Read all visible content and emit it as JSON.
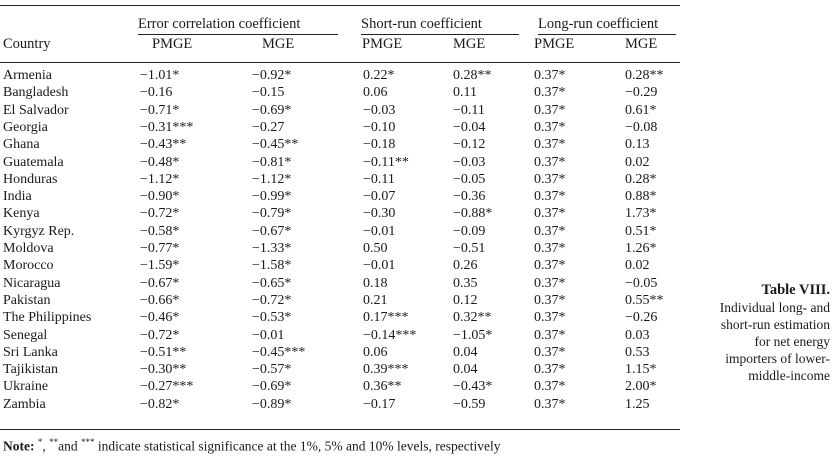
{
  "header": {
    "country": "Country",
    "groups": [
      "Error correlation coefficient",
      "Short-run coefficient",
      "Long-run coefficient"
    ],
    "subheaders": [
      "PMGE",
      "MGE",
      "PMGE",
      "MGE",
      "PMGE",
      "MGE"
    ]
  },
  "rows": [
    {
      "country": "Armenia",
      "values": [
        "−1.01*",
        "−0.92*",
        "0.22*",
        "0.28**",
        "0.37*",
        "0.28**"
      ]
    },
    {
      "country": "Bangladesh",
      "values": [
        "−0.16",
        "−0.15",
        "0.06",
        "0.11",
        "0.37*",
        "−0.29"
      ]
    },
    {
      "country": "El Salvador",
      "values": [
        "−0.71*",
        "−0.69*",
        "−0.03",
        "−0.11",
        "0.37*",
        "0.61*"
      ]
    },
    {
      "country": "Georgia",
      "values": [
        "−0.31***",
        "−0.27",
        "−0.10",
        "−0.04",
        "0.37*",
        "−0.08"
      ]
    },
    {
      "country": "Ghana",
      "values": [
        "−0.43**",
        "−0.45**",
        "−0.18",
        "−0.12",
        "0.37*",
        "0.13"
      ]
    },
    {
      "country": "Guatemala",
      "values": [
        "−0.48*",
        "−0.81*",
        "−0.11**",
        "−0.03",
        "0.37*",
        "0.02"
      ]
    },
    {
      "country": "Honduras",
      "values": [
        "−1.12*",
        "−1.12*",
        "−0.11",
        "−0.05",
        "0.37*",
        "0.28*"
      ]
    },
    {
      "country": "India",
      "values": [
        "−0.90*",
        "−0.99*",
        "−0.07",
        "−0.36",
        "0.37*",
        "0.88*"
      ]
    },
    {
      "country": "Kenya",
      "values": [
        "−0.72*",
        "−0.79*",
        "−0.30",
        "−0.88*",
        "0.37*",
        "1.73*"
      ]
    },
    {
      "country": "Kyrgyz Rep.",
      "values": [
        "−0.58*",
        "−0.67*",
        "−0.01",
        "−0.09",
        "0.37*",
        "0.51*"
      ]
    },
    {
      "country": "Moldova",
      "values": [
        "−0.77*",
        "−1.33*",
        "0.50",
        "−0.51",
        "0.37*",
        "1.26*"
      ]
    },
    {
      "country": "Morocco",
      "values": [
        "−1.59*",
        "−1.58*",
        "−0.01",
        "0.26",
        "0.37*",
        "0.02"
      ]
    },
    {
      "country": "Nicaragua",
      "values": [
        "−0.67*",
        "−0.65*",
        "0.18",
        "0.35",
        "0.37*",
        "−0.05"
      ]
    },
    {
      "country": "Pakistan",
      "values": [
        "−0.66*",
        "−0.72*",
        "0.21",
        "0.12",
        "0.37*",
        "0.55**"
      ]
    },
    {
      "country": "The Philippines",
      "values": [
        "−0.46*",
        "−0.53*",
        "0.17***",
        "0.32**",
        "0.37*",
        "−0.26"
      ]
    },
    {
      "country": "Senegal",
      "values": [
        "−0.72*",
        "−0.01",
        "−0.14***",
        "−1.05*",
        "0.37*",
        "0.03"
      ]
    },
    {
      "country": "Sri Lanka",
      "values": [
        "−0.51**",
        "−0.45***",
        "0.06",
        "0.04",
        "0.37*",
        "0.53"
      ]
    },
    {
      "country": "Tajikistan",
      "values": [
        "−0.30**",
        "−0.57*",
        "0.39***",
        "0.04",
        "0.37*",
        "1.15*"
      ]
    },
    {
      "country": "Ukraine",
      "values": [
        "−0.27***",
        "−0.69*",
        "0.36**",
        "−0.43*",
        "0.37*",
        "2.00*"
      ]
    },
    {
      "country": "Zambia",
      "values": [
        "−0.82*",
        "−0.89*",
        "−0.17",
        "−0.59",
        "0.37*",
        "1.25"
      ]
    }
  ],
  "note": {
    "label": "Note:",
    "sup1": "*",
    "sep1": ", ",
    "sup2": "**",
    "sep2": "and ",
    "sup3": "***",
    "text": " indicate statistical significance at the 1%, 5% and 10% levels, respectively"
  },
  "caption": {
    "title": "Table VIII.",
    "text": "Individual long- and short-run estimation for net energy importers of lower-middle-income"
  }
}
